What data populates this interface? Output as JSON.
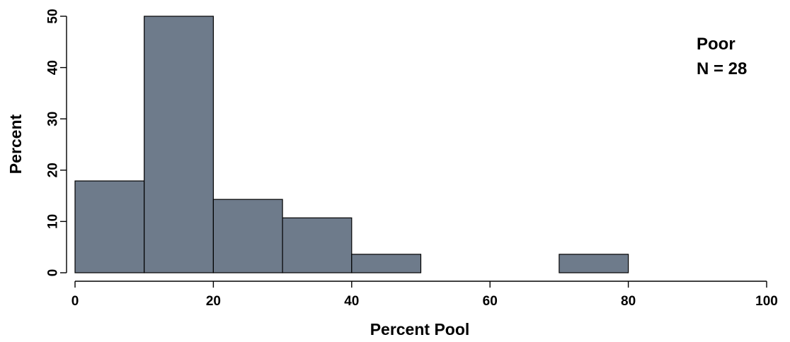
{
  "chart_data": {
    "type": "bar",
    "subtype": "histogram",
    "title": "",
    "xlabel": "Percent Pool",
    "ylabel": "Percent",
    "xlim": [
      0,
      100
    ],
    "ylim": [
      0,
      50
    ],
    "xticks": [
      0,
      20,
      40,
      60,
      80,
      100
    ],
    "yticks": [
      0,
      10,
      20,
      30,
      40,
      50
    ],
    "bins": [
      {
        "start": 0,
        "end": 10,
        "value": 17.9
      },
      {
        "start": 10,
        "end": 20,
        "value": 50.0
      },
      {
        "start": 20,
        "end": 30,
        "value": 14.3
      },
      {
        "start": 30,
        "end": 40,
        "value": 10.7
      },
      {
        "start": 40,
        "end": 50,
        "value": 3.6
      },
      {
        "start": 50,
        "end": 60,
        "value": 0
      },
      {
        "start": 60,
        "end": 70,
        "value": 0
      },
      {
        "start": 70,
        "end": 80,
        "value": 3.6
      },
      {
        "start": 80,
        "end": 90,
        "value": 0
      },
      {
        "start": 90,
        "end": 100,
        "value": 0
      }
    ],
    "annotations": [
      "Poor",
      "N = 28"
    ],
    "legend_position": "top-right",
    "grid": false,
    "bar_color": "#6e7b8b",
    "edge_color": "#000000"
  }
}
